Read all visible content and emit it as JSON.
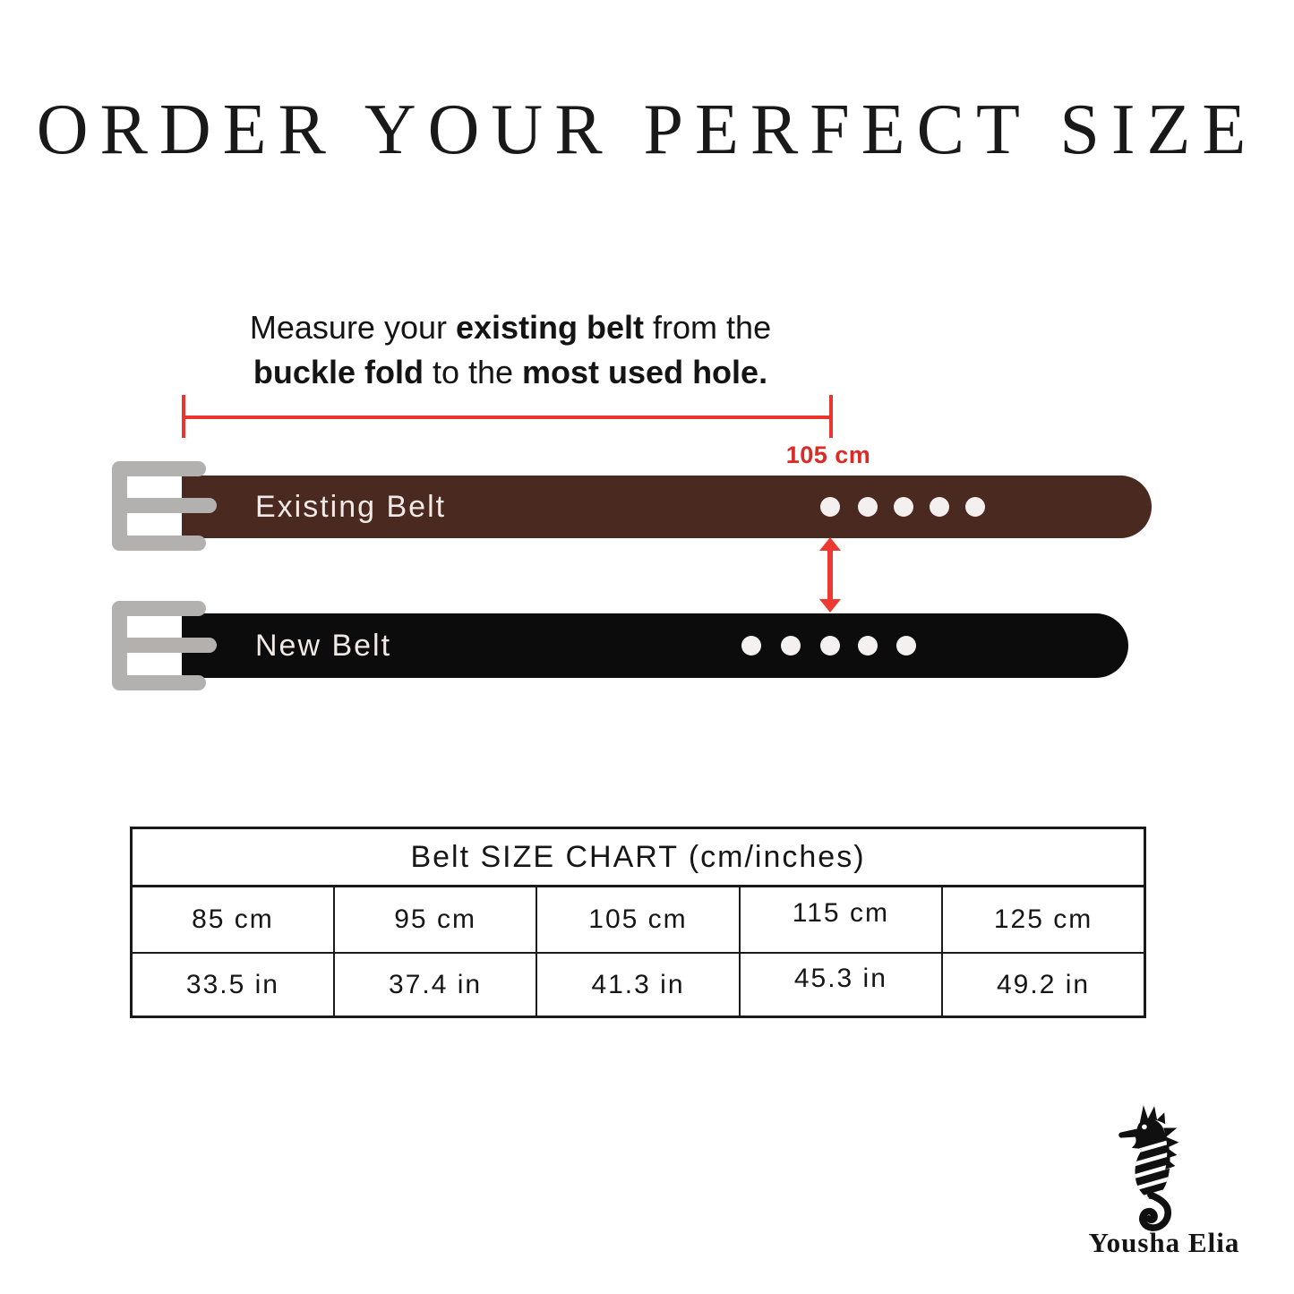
{
  "title": "ORDER YOUR PERFECT SIZE",
  "instruction": {
    "line1_parts": [
      {
        "text": "Measure your ",
        "bold": false
      },
      {
        "text": "existing belt",
        "bold": true
      },
      {
        "text": " from the",
        "bold": false
      }
    ],
    "line2_parts": [
      {
        "text": "buckle fold",
        "bold": true
      },
      {
        "text": " to the ",
        "bold": false
      },
      {
        "text": "most used hole.",
        "bold": true
      }
    ]
  },
  "measurement": {
    "label": "105 cm"
  },
  "belts": {
    "existing_label": "Existing Belt",
    "new_label": "New Belt",
    "holes_per_belt": 5
  },
  "size_chart": {
    "title": "Belt SIZE CHART (cm/inches)",
    "cm_values": [
      "85 cm",
      "95 cm",
      "105 cm",
      "115 cm",
      "125 cm"
    ],
    "inch_values": [
      "33.5 in",
      "37.4 in",
      "41.3 in",
      "45.3 in",
      "49.2 in"
    ]
  },
  "brand": {
    "name": "Yousha Elia",
    "logo_icon": "seahorse-icon"
  },
  "colors": {
    "accent_red": "#ea352e",
    "belt_brown": "#4a2921",
    "belt_black": "#0c0c0c",
    "buckle_gray": "#b3b1b0",
    "belt_text": "#f1e9e5",
    "table_border": "#1a1a1a"
  }
}
